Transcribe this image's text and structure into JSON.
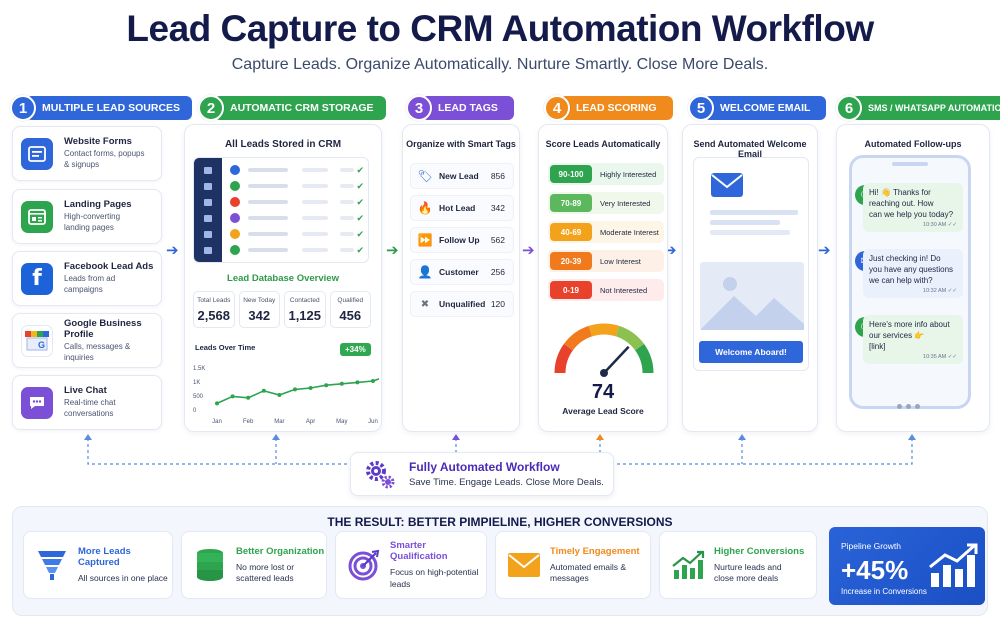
{
  "title": "Lead Capture to CRM Automation Workflow",
  "subtitle": "Capture Leads. Organize Automatically. Nurture Smartly. Close More Deals.",
  "colors": {
    "blue": "#2f66d9",
    "green": "#2ea44f",
    "purple": "#7b4fd6",
    "orange": "#f08a1c",
    "navy": "#141a4a"
  },
  "steps": [
    {
      "num": "1",
      "label": "MULTIPLE LEAD SOURCES",
      "color": "#2f66d9"
    },
    {
      "num": "2",
      "label": "AUTOMATIC CRM STORAGE",
      "color": "#2ea44f"
    },
    {
      "num": "3",
      "label": "LEAD TAGS",
      "color": "#7b4fd6"
    },
    {
      "num": "4",
      "label": "LEAD SCORING",
      "color": "#f08a1c"
    },
    {
      "num": "5",
      "label": "WELCOME EMAIL",
      "color": "#2f66d9"
    },
    {
      "num": "6",
      "label": "SMS / WHATSAPP AUTOMATION",
      "color": "#2ea44f"
    }
  ],
  "sources": [
    {
      "name": "Website Forms",
      "desc1": "Contact forms, popups",
      "desc2": "& signups",
      "icon": "form-icon",
      "color": "#2f66d9"
    },
    {
      "name": "Landing Pages",
      "desc1": "High-converting",
      "desc2": "landing pages",
      "icon": "landing-page-icon",
      "color": "#2ea44f"
    },
    {
      "name": "Facebook Lead Ads",
      "desc1": "Leads from ad",
      "desc2": "campaigns",
      "icon": "facebook-icon",
      "color": "#1c63d9"
    },
    {
      "name": "Google Business Profile",
      "desc1": "Calls, messages &",
      "desc2": "inquiries",
      "icon": "google-store-icon",
      "color": "#3b82f6"
    },
    {
      "name": "Live Chat",
      "desc1": "Real-time chat",
      "desc2": "conversations",
      "icon": "chat-icon",
      "color": "#7b4fd6"
    }
  ],
  "crm": {
    "title": "All Leads Stored in CRM",
    "overview": "Lead Database Overview",
    "stats": [
      {
        "label": "Total Leads",
        "value": "2,568"
      },
      {
        "label": "New Today",
        "value": "342"
      },
      {
        "label": "Contacted",
        "value": "1,125"
      },
      {
        "label": "Qualified",
        "value": "456"
      }
    ],
    "chart_title": "Leads Over Time",
    "badge": "+34%"
  },
  "chart_data": {
    "type": "line",
    "title": "Leads Over Time",
    "categories": [
      "Jan",
      "Feb",
      "Mar",
      "Apr",
      "May",
      "Jun"
    ],
    "x": [
      0,
      0.5,
      1,
      1.5,
      2,
      2.5,
      3,
      3.5,
      4,
      4.5,
      5,
      5.5
    ],
    "values": [
      200,
      450,
      400,
      650,
      500,
      700,
      750,
      850,
      900,
      950,
      1000,
      1200
    ],
    "yticks": [
      "1.5K",
      "1K",
      "500",
      "0"
    ],
    "ylim": [
      0,
      1500
    ],
    "grid": false
  },
  "tags": {
    "title": "Organize with Smart Tags",
    "items": [
      {
        "name": "New Lead",
        "count": "856",
        "icon": "tag-icon",
        "color": "#2f66d9",
        "glyph": "🏷"
      },
      {
        "name": "Hot Lead",
        "count": "342",
        "icon": "fire-icon",
        "color": "#e8412c",
        "glyph": "🔥"
      },
      {
        "name": "Follow Up",
        "count": "562",
        "icon": "follow-up-icon",
        "color": "#f08a1c",
        "glyph": "⏩"
      },
      {
        "name": "Customer",
        "count": "256",
        "icon": "customer-icon",
        "color": "#2ea44f",
        "glyph": "👤"
      },
      {
        "name": "Unqualified",
        "count": "120",
        "icon": "close-icon",
        "color": "#6b7280",
        "glyph": "✖"
      }
    ]
  },
  "scoring": {
    "title": "Score Leads Automatically",
    "rows": [
      {
        "range": "90-100",
        "label": "Highly Interested",
        "color": "#2ea44f",
        "bg": "#eaf7ec"
      },
      {
        "range": "70-89",
        "label": "Very Interested",
        "color": "#5cb85c",
        "bg": "#eff8ea"
      },
      {
        "range": "40-69",
        "label": "Moderate Interest",
        "color": "#f3a21c",
        "bg": "#fdf5e6"
      },
      {
        "range": "20-39",
        "label": "Low Interest",
        "color": "#f07a1c",
        "bg": "#fdf0e6"
      },
      {
        "range": "0-19",
        "label": "Not Interested",
        "color": "#e8412c",
        "bg": "#fdeceb"
      }
    ],
    "gauge_value": "74",
    "gauge_label": "Average Lead Score",
    "gauge_fraction": 0.74
  },
  "email": {
    "title": "Send Automated Welcome Email",
    "button": "Welcome Aboard!"
  },
  "sms": {
    "title": "Automated Follow-ups",
    "messages": [
      {
        "text": [
          "Hi! 👋 Thanks for",
          "reaching out. How",
          "can we help you today?"
        ],
        "time": "10:30 AM ✓✓"
      },
      {
        "text": [
          "Just checking in! Do",
          "you have any questions",
          "we can help with?"
        ],
        "time": "10:32 AM ✓✓"
      },
      {
        "text": [
          "Here's more info about",
          "our services 👉",
          "[link]"
        ],
        "time": "10:35 AM ✓✓"
      }
    ]
  },
  "automation": {
    "title": "Fully Automated Workflow",
    "subtitle": "Save Time. Engage Leads. Close More Deals."
  },
  "result": {
    "title": "THE RESULT: BETTER PIMPIELINE, HIGHER CONVERSIONS",
    "items": [
      {
        "name": "More Leads Captured",
        "desc1": "All sources in one place",
        "desc2": "",
        "color": "#2f66d9",
        "icon": "funnel-icon"
      },
      {
        "name": "Better Organization",
        "desc1": "No more lost or",
        "desc2": "scattered leads",
        "color": "#2ea44f",
        "icon": "database-icon"
      },
      {
        "name": "Smarter Qualification",
        "desc1": "Focus on high-potential",
        "desc2": "leads",
        "color": "#7b4fd6",
        "icon": "target-icon"
      },
      {
        "name": "Timely Engagement",
        "desc1": "Automated emails &",
        "desc2": "messages",
        "color": "#f08a1c",
        "icon": "envelope-icon"
      },
      {
        "name": "Higher Conversions",
        "desc1": "Nurture leads and",
        "desc2": "close more deals",
        "color": "#2ea44f",
        "icon": "growth-chart-icon"
      }
    ],
    "pipeline": {
      "label": "Pipeline Growth",
      "value": "+45%",
      "sub": "Increase in Conversions"
    }
  }
}
